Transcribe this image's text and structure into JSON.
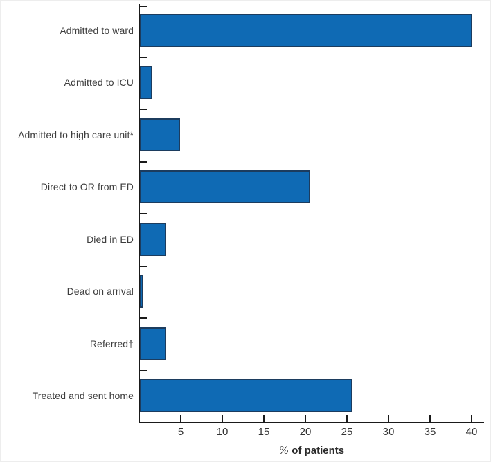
{
  "chart_data": {
    "type": "bar",
    "orientation": "horizontal",
    "title": "",
    "categories": [
      "Admitted to ward",
      "Admitted to ICU",
      "Admitted to high care unit*",
      "Direct to OR from ED",
      "Died in ED",
      "Dead on arrival",
      "Referred†",
      "Treated and sent home"
    ],
    "values": [
      40.0,
      1.5,
      4.8,
      20.5,
      3.2,
      0.4,
      3.2,
      25.6
    ],
    "x_ticks": [
      5,
      10,
      15,
      20,
      25,
      30,
      35,
      40
    ],
    "xlim": [
      0,
      41.5
    ],
    "xlabel": "% of patients",
    "xlabel_symbol": "%",
    "xlabel_text": " of patients",
    "ylabel": "",
    "grid": false,
    "legend": null,
    "bar_color": "#0f6ab4",
    "bar_border_color": "#1c3c5e",
    "axis_color": "#1a1a1a",
    "label_color": "#3d3d3d"
  }
}
